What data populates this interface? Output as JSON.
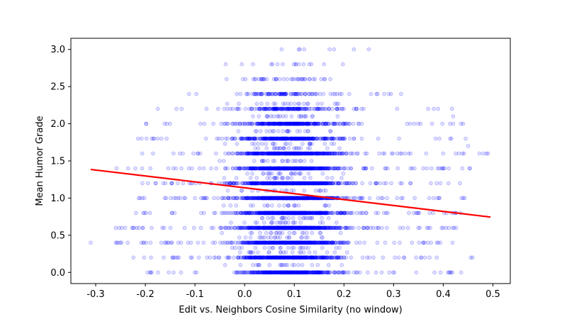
{
  "chart_data": {
    "type": "scatter",
    "xlabel": "Edit vs. Neighbors Cosine Similarity (no window)",
    "ylabel": "Mean Humor Grade",
    "xlim": [
      -0.35,
      0.535
    ],
    "ylim": [
      -0.15,
      3.15
    ],
    "x_ticks": [
      "-0.3",
      "-0.2",
      "-0.1",
      "0.0",
      "0.1",
      "0.2",
      "0.3",
      "0.4",
      "0.5"
    ],
    "y_ticks": [
      "0.0",
      "0.5",
      "1.0",
      "1.5",
      "2.0",
      "2.5",
      "3.0"
    ],
    "grid": false,
    "legend": "none",
    "colors": {
      "points": "#0000ff",
      "fit_line": "#ff0000"
    },
    "y_levels": [
      0.0,
      0.2,
      0.4,
      0.6,
      0.8,
      1.0,
      1.2,
      1.4,
      1.6,
      1.8,
      2.0,
      2.2,
      2.4,
      2.6,
      2.8,
      3.0
    ],
    "level_x_ranges": [
      [
        -0.2,
        0.44
      ],
      [
        -0.23,
        0.46
      ],
      [
        -0.26,
        0.42
      ],
      [
        -0.26,
        0.43
      ],
      [
        -0.23,
        0.44
      ],
      [
        -0.25,
        0.45
      ],
      [
        -0.21,
        0.45
      ],
      [
        -0.26,
        0.46
      ],
      [
        -0.21,
        0.49
      ],
      [
        -0.22,
        0.45
      ],
      [
        -0.2,
        0.44
      ],
      [
        -0.19,
        0.42
      ],
      [
        -0.15,
        0.32
      ],
      [
        -0.08,
        0.24
      ],
      [
        -0.04,
        0.2
      ],
      [
        0.06,
        0.25
      ]
    ],
    "level_counts": [
      420,
      480,
      560,
      600,
      580,
      600,
      560,
      560,
      480,
      360,
      330,
      180,
      100,
      40,
      16,
      4
    ],
    "minor_levels": [
      0.1,
      0.27,
      0.33,
      0.47,
      0.53,
      0.67,
      0.73,
      0.9,
      1.1,
      1.27,
      1.33,
      1.5,
      1.67,
      1.73,
      1.9,
      2.1,
      2.27
    ],
    "outliers": [
      {
        "x": -0.31,
        "y": 0.4
      },
      {
        "x": 0.12,
        "y": 3.0
      },
      {
        "x": 0.18,
        "y": 3.0
      },
      {
        "x": 0.22,
        "y": 3.0
      },
      {
        "x": 0.25,
        "y": 3.0
      },
      {
        "x": 0.49,
        "y": 1.6
      },
      {
        "x": 0.45,
        "y": 1.7
      },
      {
        "x": 0.44,
        "y": 2.0
      },
      {
        "x": 0.42,
        "y": 2.1
      }
    ],
    "fit_line": {
      "x": [
        -0.31,
        0.495
      ],
      "y": [
        1.385,
        0.745
      ]
    }
  }
}
